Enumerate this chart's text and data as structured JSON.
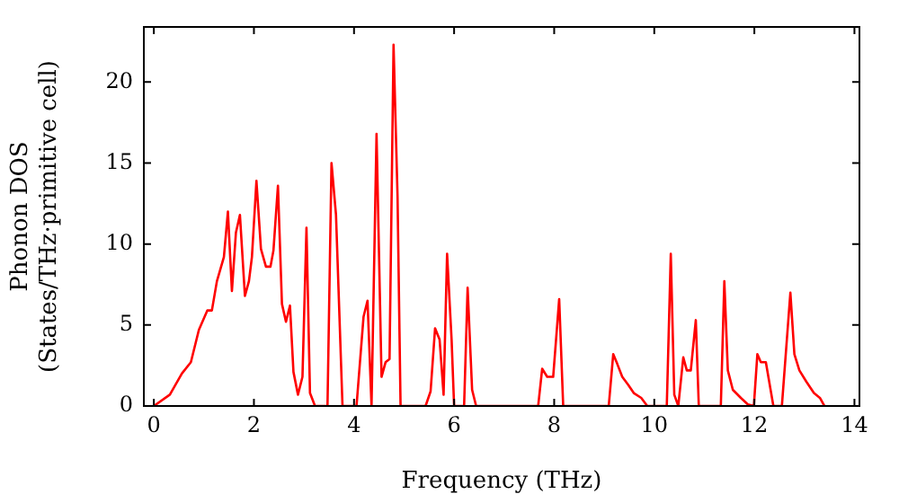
{
  "chart_data": {
    "type": "line",
    "xlabel": "Frequency (THz)",
    "ylabel": "Phonon DOS\n(States/THz·primitive cell)",
    "xlim": [
      -0.2,
      14.1
    ],
    "xticks": [
      0,
      2,
      4,
      6,
      8,
      10,
      12,
      14
    ],
    "ylim": [
      0,
      23.4
    ],
    "yticks": [
      0,
      5,
      10,
      15,
      20
    ],
    "grid": false,
    "legend": false,
    "marker": "none",
    "line_style": "solid",
    "series": [
      {
        "color": "#ff0000",
        "x": [
          0,
          0.32,
          0.56,
          0.74,
          0.9,
          1.07,
          1.16,
          1.26,
          1.4,
          1.48,
          1.56,
          1.64,
          1.72,
          1.82,
          1.9,
          1.96,
          2.05,
          2.14,
          2.24,
          2.33,
          2.39,
          2.48,
          2.56,
          2.64,
          2.72,
          2.79,
          2.88,
          2.97,
          3.05,
          3.12,
          3.22,
          3.47,
          3.55,
          3.64,
          3.77,
          4.05,
          4.19,
          4.27,
          4.35,
          4.45,
          4.55,
          4.63,
          4.71,
          4.79,
          4.87,
          4.93,
          5.43,
          5.53,
          5.62,
          5.71,
          5.79,
          5.86,
          5.95,
          6.0,
          6.2,
          6.27,
          6.36,
          6.44,
          7.68,
          7.76,
          7.86,
          7.98,
          8.1,
          8.18,
          9.09,
          9.18,
          9.26,
          9.36,
          9.48,
          9.59,
          9.74,
          9.86,
          10.25,
          10.33,
          10.4,
          10.48,
          10.58,
          10.65,
          10.73,
          10.83,
          10.89,
          11.33,
          11.4,
          11.47,
          11.57,
          11.73,
          11.87,
          11.99,
          12.06,
          12.13,
          12.23,
          12.38,
          12.55,
          12.72,
          12.8,
          12.9,
          13.04,
          13.19,
          13.31,
          13.4
        ],
        "values": [
          0,
          0.7,
          2.0,
          2.7,
          4.7,
          5.9,
          5.9,
          7.7,
          9.2,
          12.0,
          7.1,
          10.7,
          11.8,
          6.8,
          7.7,
          9.2,
          13.9,
          9.7,
          8.6,
          8.6,
          9.6,
          13.6,
          6.3,
          5.2,
          6.2,
          2.1,
          0.7,
          1.8,
          11.0,
          0.8,
          0,
          0,
          15.0,
          11.8,
          0,
          0,
          5.5,
          6.5,
          0,
          16.8,
          1.8,
          2.7,
          2.9,
          22.3,
          12.9,
          0,
          0,
          0.9,
          4.8,
          4.1,
          0.7,
          9.4,
          4.1,
          0,
          0,
          7.3,
          1.0,
          0,
          0,
          2.3,
          1.8,
          1.8,
          6.6,
          0,
          0,
          3.2,
          2.6,
          1.8,
          1.3,
          0.8,
          0.5,
          0,
          0,
          9.4,
          0.7,
          0,
          3.0,
          2.2,
          2.2,
          5.3,
          0,
          0,
          7.7,
          2.2,
          1.0,
          0.5,
          0.1,
          0,
          3.2,
          2.7,
          2.7,
          0,
          0,
          7.0,
          3.2,
          2.2,
          1.5,
          0.8,
          0.5,
          0
        ]
      }
    ]
  }
}
